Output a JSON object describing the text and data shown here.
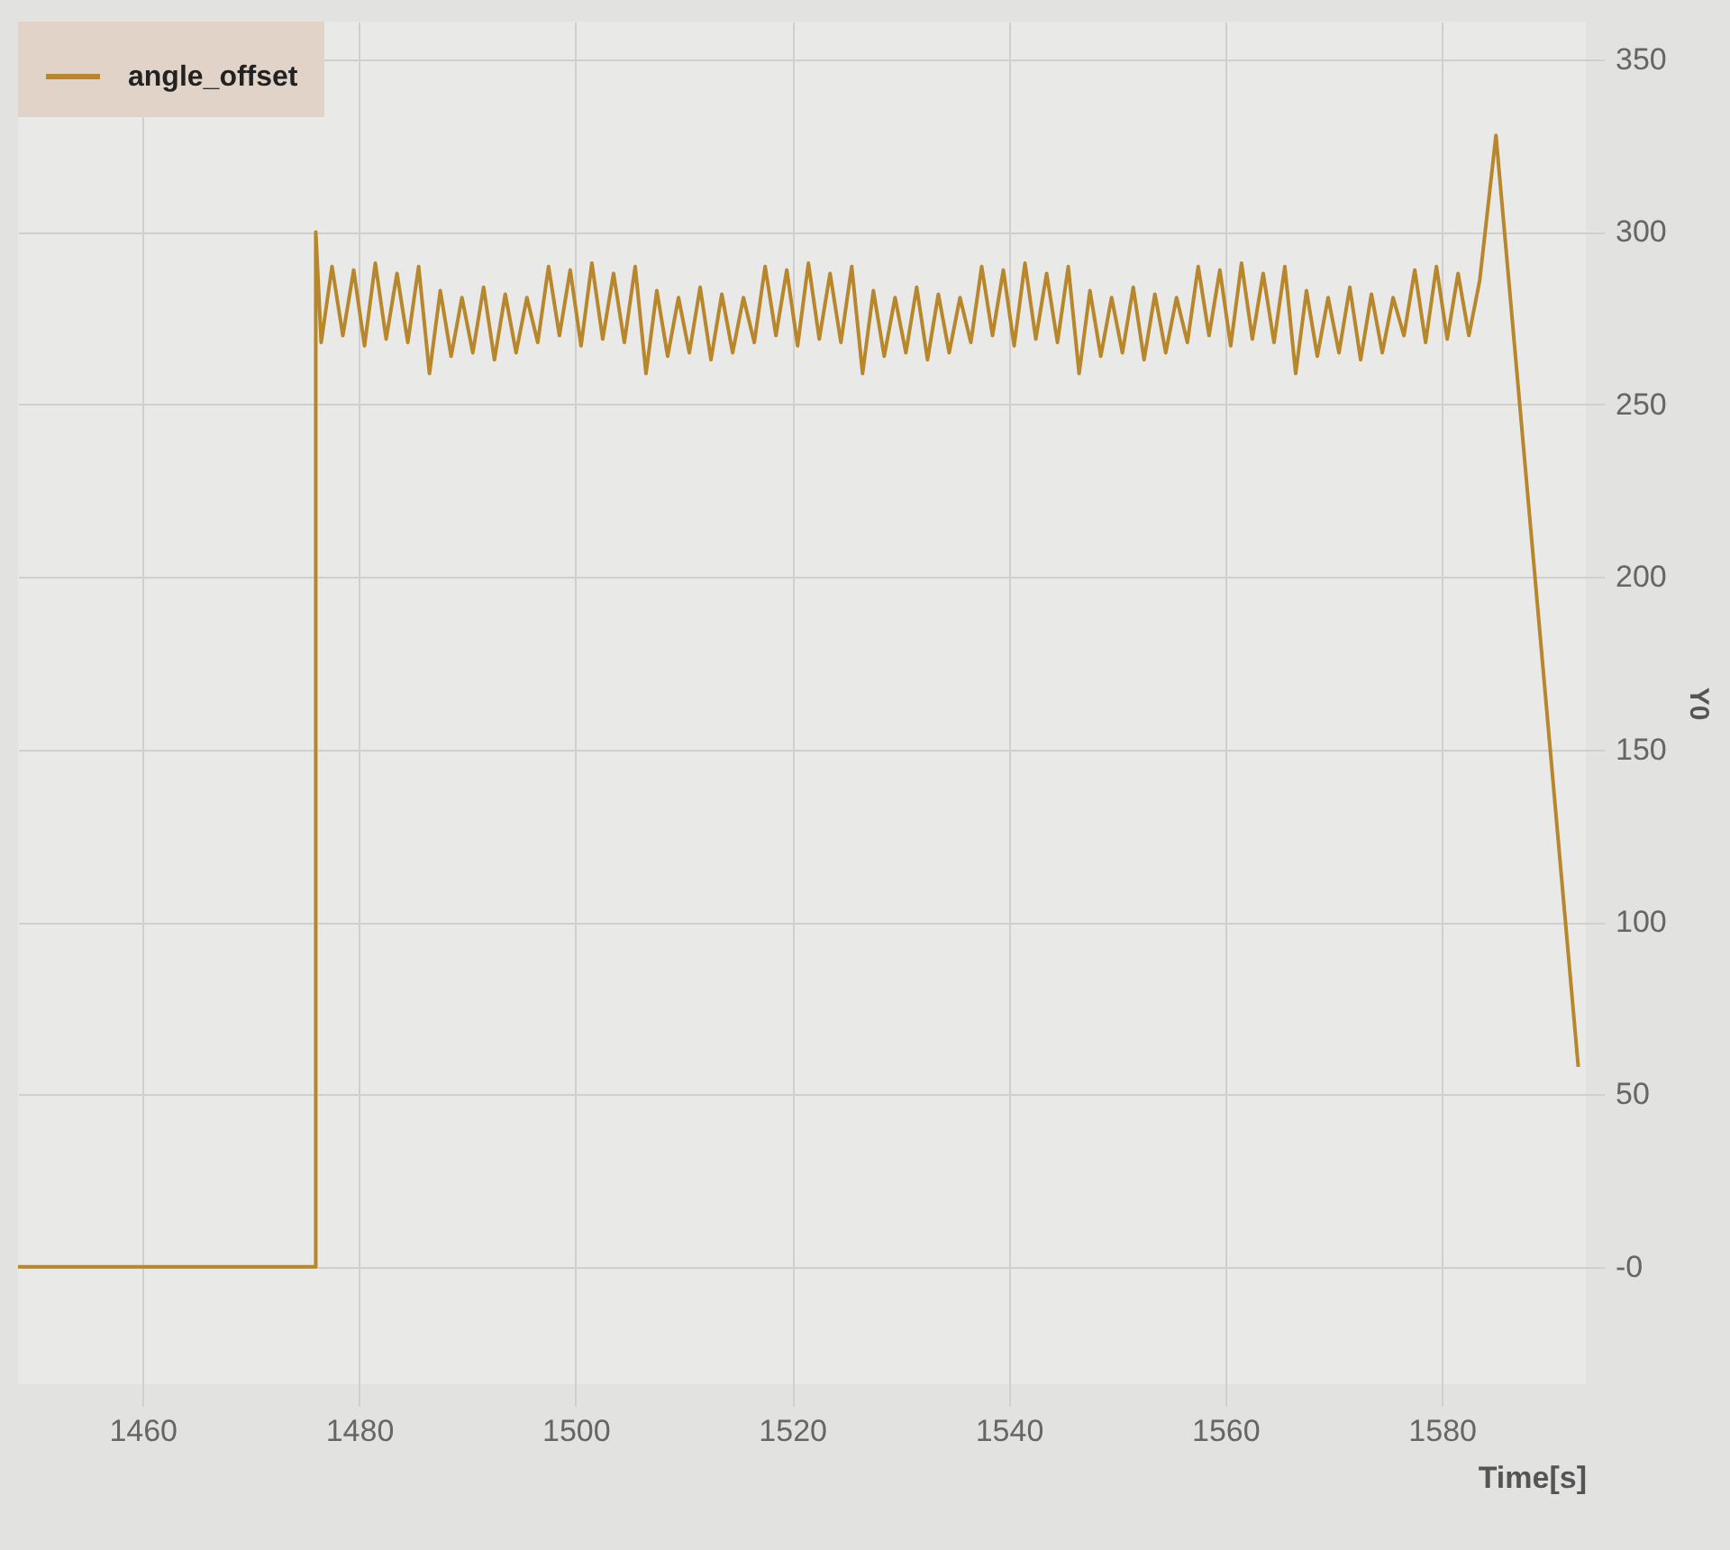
{
  "chart_data": {
    "type": "line",
    "xlabel": "Time[s]",
    "ylabel": "Y0",
    "x": [
      1448.5,
      1476,
      1476,
      1476.5,
      1477.5,
      1478.5,
      1479.5,
      1480.5,
      1481.5,
      1482.5,
      1483.5,
      1484.5,
      1485.5,
      1486.5,
      1487.5,
      1488.5,
      1489.5,
      1490.5,
      1491.5,
      1492.5,
      1493.5,
      1494.5,
      1495.5,
      1496.5,
      1497.5,
      1498.5,
      1499.5,
      1500.5,
      1501.5,
      1502.5,
      1503.5,
      1504.5,
      1505.5,
      1506.5,
      1507.5,
      1508.5,
      1509.5,
      1510.5,
      1511.5,
      1512.5,
      1513.5,
      1514.5,
      1515.5,
      1516.5,
      1517.5,
      1518.5,
      1519.5,
      1520.5,
      1521.5,
      1522.5,
      1523.5,
      1524.5,
      1525.5,
      1526.5,
      1527.5,
      1528.5,
      1529.5,
      1530.5,
      1531.5,
      1532.5,
      1533.5,
      1534.5,
      1535.5,
      1536.5,
      1537.5,
      1538.5,
      1539.5,
      1540.5,
      1541.5,
      1542.5,
      1543.5,
      1544.5,
      1545.5,
      1546.5,
      1547.5,
      1548.5,
      1549.5,
      1550.5,
      1551.5,
      1552.5,
      1553.5,
      1554.5,
      1555.5,
      1556.5,
      1557.5,
      1558.5,
      1559.5,
      1560.5,
      1561.5,
      1562.5,
      1563.5,
      1564.5,
      1565.5,
      1566.5,
      1567.5,
      1568.5,
      1569.5,
      1570.5,
      1571.5,
      1572.5,
      1573.5,
      1574.5,
      1575.5,
      1576.5,
      1577.5,
      1578.5,
      1579.5,
      1580.5,
      1581.5,
      1582.5,
      1583.5,
      1585,
      1592.6
    ],
    "series": [
      {
        "name": "angle_offset",
        "color": "#b8862b",
        "values": [
          0,
          0,
          300,
          268,
          290,
          270,
          289,
          267,
          291,
          269,
          288,
          268,
          290,
          259,
          283,
          264,
          281,
          265,
          284,
          263,
          282,
          265,
          281,
          268,
          290,
          270,
          289,
          267,
          291,
          269,
          288,
          268,
          290,
          259,
          283,
          264,
          281,
          265,
          284,
          263,
          282,
          265,
          281,
          268,
          290,
          270,
          289,
          267,
          291,
          269,
          288,
          268,
          290,
          259,
          283,
          264,
          281,
          265,
          284,
          263,
          282,
          265,
          281,
          268,
          290,
          270,
          289,
          267,
          291,
          269,
          288,
          268,
          290,
          259,
          283,
          264,
          281,
          265,
          284,
          263,
          282,
          265,
          281,
          268,
          290,
          270,
          289,
          267,
          291,
          269,
          288,
          268,
          290,
          259,
          283,
          264,
          281,
          265,
          284,
          263,
          282,
          265,
          281,
          270,
          289,
          268,
          290,
          269,
          288,
          270,
          286,
          328,
          58
        ]
      }
    ],
    "xlim": [
      1448.5,
      1593.3
    ],
    "xticks": [
      1460,
      1480,
      1500,
      1520,
      1540,
      1560,
      1580
    ],
    "ylim": [
      -34,
      361
    ],
    "yticks": [
      {
        "value": 0,
        "label": "-0"
      },
      50,
      100,
      150,
      200,
      250,
      300,
      350
    ],
    "grid": true,
    "legend": "top left"
  }
}
